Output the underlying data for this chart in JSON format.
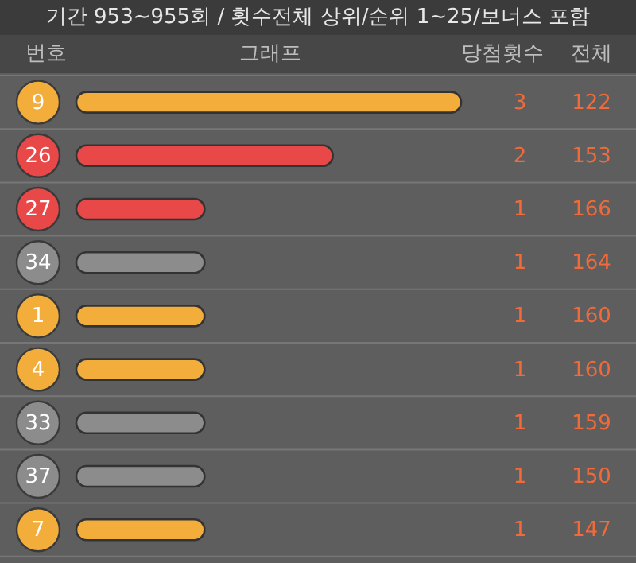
{
  "chart_data": {
    "type": "bar",
    "orientation": "horizontal",
    "title": "기간 953~955회 / 횟수전체 상위/순위 1~25/보너스 포함",
    "categories": [
      "9",
      "26",
      "27",
      "34",
      "1",
      "4",
      "33",
      "37",
      "7"
    ],
    "values": [
      3,
      2,
      1,
      1,
      1,
      1,
      1,
      1,
      1
    ],
    "colors": [
      "#f2ad3a",
      "#e84848",
      "#e84848",
      "#8c8c8c",
      "#f2ad3a",
      "#f2ad3a",
      "#8c8c8c",
      "#8c8c8c",
      "#f2ad3a"
    ],
    "data_labels": true,
    "annotations": [
      "번호",
      "그래프",
      "당첨횟수",
      "전체",
      "122",
      "153",
      "166",
      "164",
      "160",
      "160",
      "159",
      "150",
      "147"
    ]
  }
}
